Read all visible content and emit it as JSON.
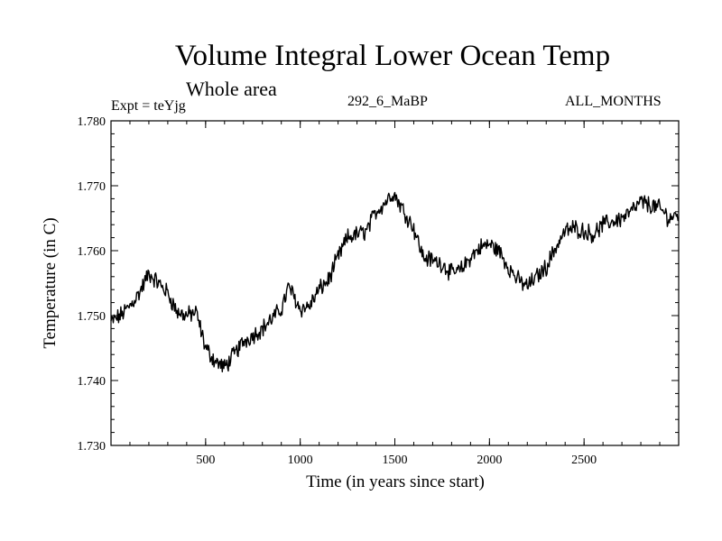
{
  "chart_data": {
    "type": "line",
    "title": "Volume Integral Lower Ocean Temp",
    "subtitle": "Whole area",
    "experiment_label": "Expt = teYjg",
    "run_label": "292_6_MaBP",
    "period_label": "ALL_MONTHS",
    "xlabel": "Time (in years since start)",
    "ylabel": "Temperature (in C)",
    "xlim": [
      0,
      3000
    ],
    "ylim": [
      1.73,
      1.78
    ],
    "xticks": [
      500,
      1000,
      1500,
      2000,
      2500
    ],
    "xtick_labels": [
      "500",
      "1000",
      "1500",
      "2000",
      "2500"
    ],
    "yticks": [
      1.73,
      1.74,
      1.75,
      1.76,
      1.77,
      1.78
    ],
    "ytick_labels": [
      "1.730",
      "1.740",
      "1.750",
      "1.760",
      "1.770",
      "1.780"
    ],
    "grid": false,
    "series": [
      {
        "name": "Volume Integral Lower Ocean Temp",
        "color": "#000000",
        "x": [
          0,
          50,
          100,
          150,
          200,
          250,
          300,
          350,
          400,
          450,
          500,
          550,
          600,
          650,
          700,
          750,
          800,
          850,
          900,
          940,
          1000,
          1050,
          1100,
          1150,
          1200,
          1250,
          1300,
          1350,
          1400,
          1450,
          1490,
          1550,
          1600,
          1650,
          1700,
          1750,
          1800,
          1850,
          1900,
          1950,
          2000,
          2050,
          2100,
          2150,
          2200,
          2250,
          2300,
          2350,
          2400,
          2450,
          2500,
          2550,
          2600,
          2650,
          2700,
          2750,
          2800,
          2850,
          2900,
          2950,
          3000
        ],
        "y": [
          1.749,
          1.75,
          1.7515,
          1.7535,
          1.7565,
          1.755,
          1.7535,
          1.7505,
          1.75,
          1.7505,
          1.745,
          1.743,
          1.742,
          1.744,
          1.746,
          1.747,
          1.748,
          1.7495,
          1.751,
          1.7545,
          1.751,
          1.7515,
          1.754,
          1.7555,
          1.759,
          1.762,
          1.7625,
          1.763,
          1.766,
          1.7675,
          1.769,
          1.766,
          1.7635,
          1.759,
          1.7585,
          1.758,
          1.7565,
          1.757,
          1.759,
          1.7605,
          1.761,
          1.76,
          1.7575,
          1.7555,
          1.7545,
          1.756,
          1.7575,
          1.7605,
          1.763,
          1.7635,
          1.763,
          1.7625,
          1.764,
          1.7645,
          1.765,
          1.766,
          1.7675,
          1.767,
          1.7665,
          1.765,
          1.7655
        ]
      }
    ]
  }
}
